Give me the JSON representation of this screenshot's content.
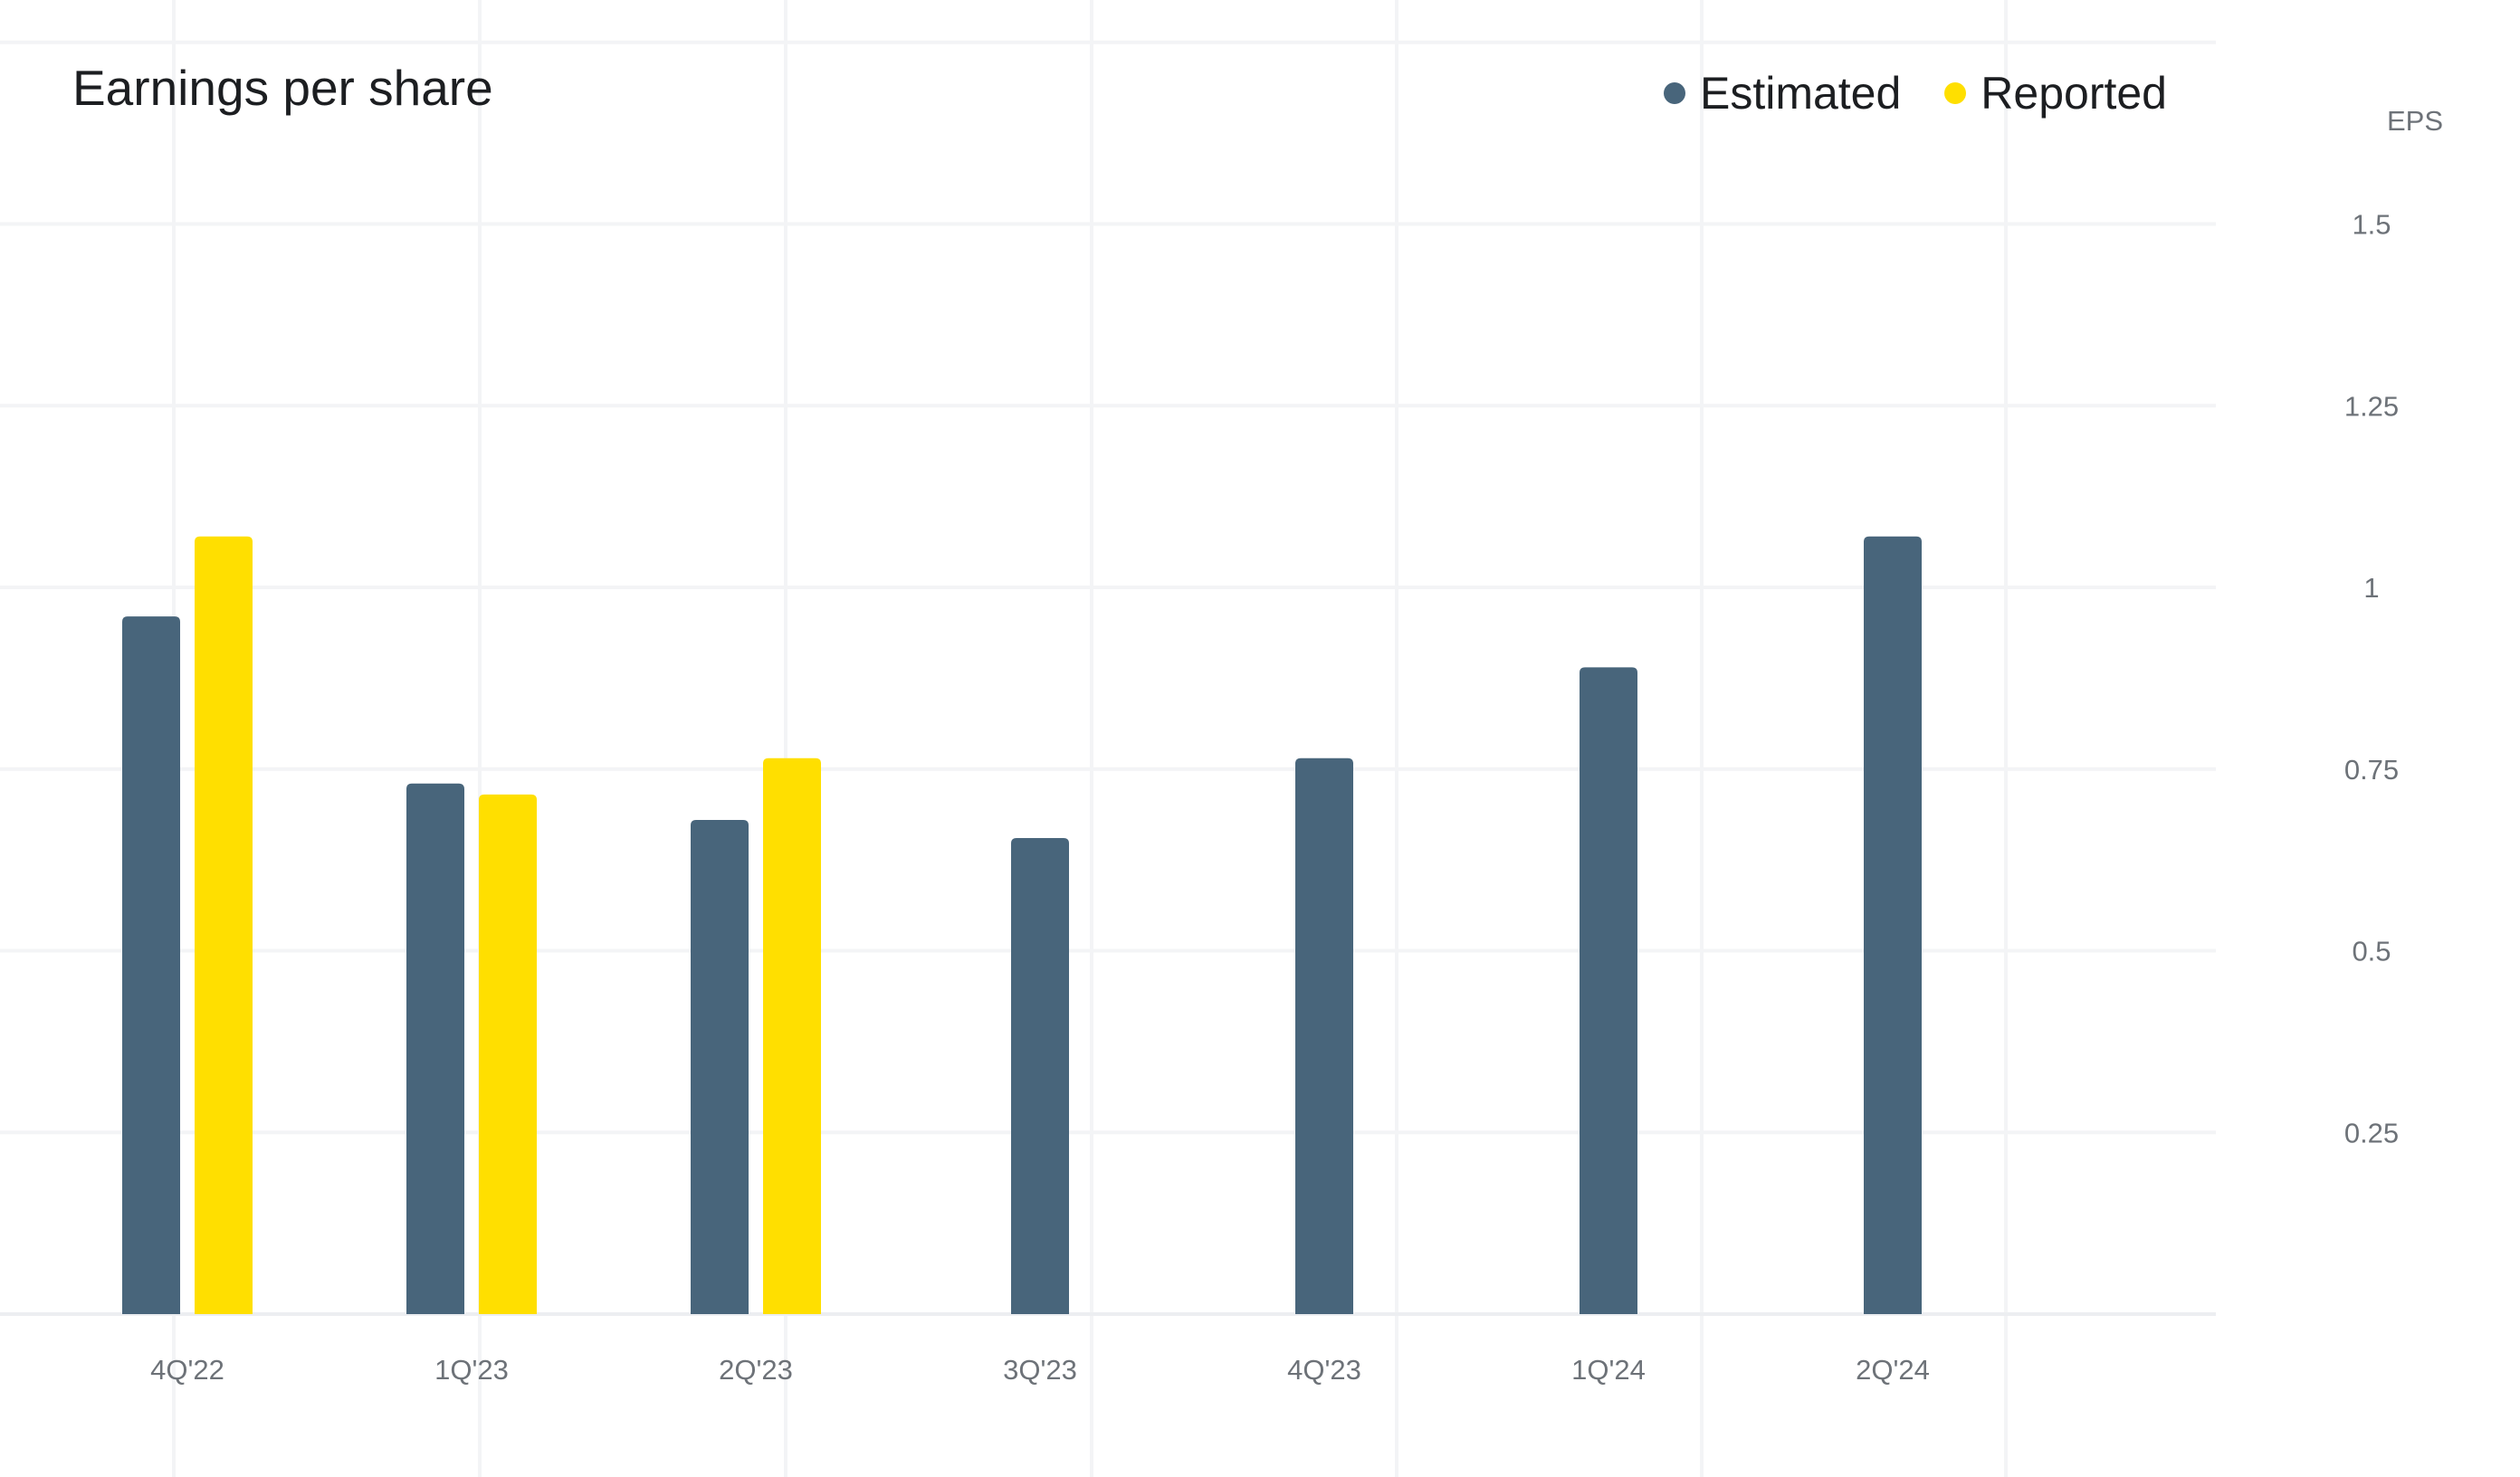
{
  "chart_data": {
    "type": "bar",
    "title": "Earnings per share",
    "xlabel": "",
    "ylabel": "EPS",
    "categories": [
      "4Q'22",
      "1Q'23",
      "2Q'23",
      "3Q'23",
      "4Q'23",
      "1Q'24",
      "2Q'24"
    ],
    "series": [
      {
        "name": "Estimated",
        "color": "#48657b",
        "values": [
          0.96,
          0.73,
          0.68,
          0.655,
          0.765,
          0.89,
          1.07
        ]
      },
      {
        "name": "Reported",
        "color": "#ffdf00",
        "values": [
          1.07,
          0.715,
          0.765,
          null,
          null,
          null,
          null
        ]
      }
    ],
    "y_ticks": [
      0.25,
      0.5,
      0.75,
      1,
      1.25,
      1.5
    ],
    "y_tick_labels": [
      "0.25",
      "0.5",
      "0.75",
      "1",
      "1.25",
      "1.5"
    ],
    "ylim": [
      0,
      1.75
    ],
    "grid": true,
    "legend_position": "top-right"
  }
}
